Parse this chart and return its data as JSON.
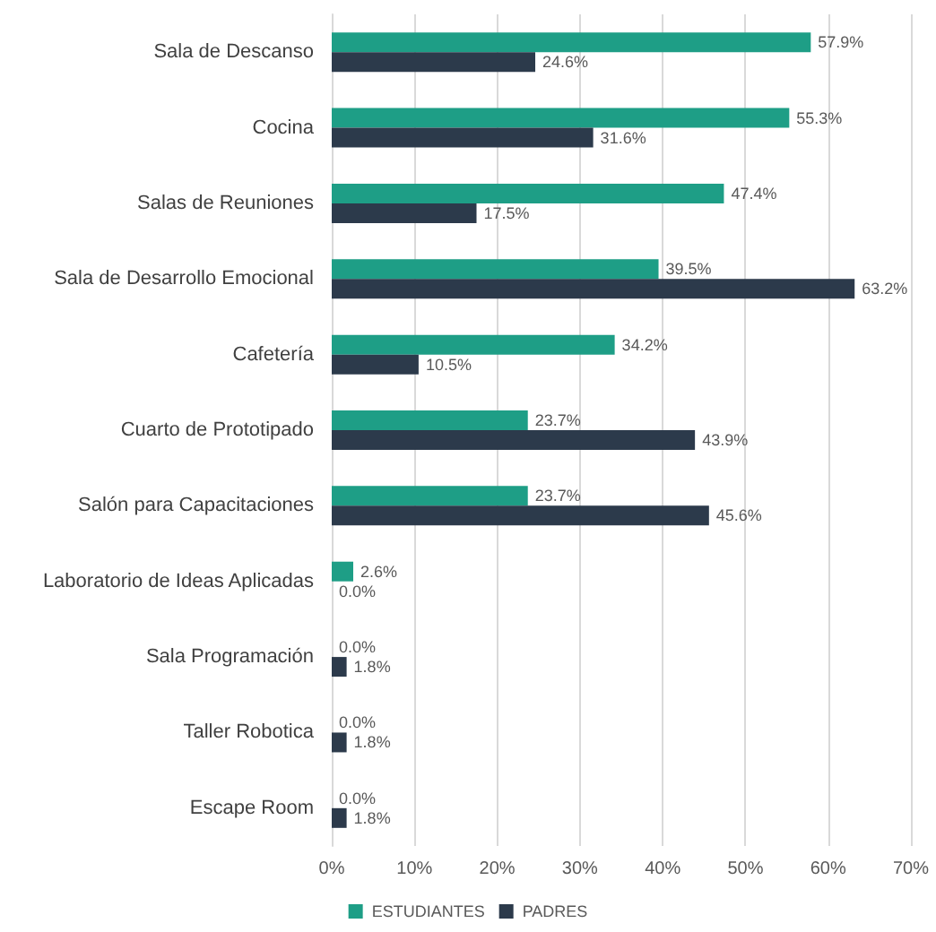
{
  "chart_data": {
    "type": "bar",
    "orientation": "horizontal",
    "categories": [
      "Sala de Descanso",
      "Cocina",
      "Salas de Reuniones",
      "Sala de Desarrollo Emocional",
      "Cafetería",
      "Cuarto de Prototipado",
      "Salón para Capacitaciones",
      "Laboratorio de Ideas Aplicadas",
      "Sala Programación",
      "Taller Robotica",
      "Escape Room"
    ],
    "series": [
      {
        "name": "ESTUDIANTES",
        "color": "#1e9e86",
        "values": [
          57.9,
          55.3,
          47.4,
          39.5,
          34.2,
          23.7,
          23.7,
          2.6,
          0,
          0,
          0
        ],
        "value_labels": [
          "57.9%",
          "55.3%",
          "47.4%",
          "39.5%",
          "34.2%",
          "23.7%",
          "23.7%",
          "2.6%",
          "0.0%",
          "0.0%",
          "0.0%"
        ]
      },
      {
        "name": "PADRES",
        "color": "#2c3a4b",
        "values": [
          24.6,
          31.6,
          17.5,
          63.2,
          10.5,
          43.9,
          45.6,
          0,
          1.8,
          1.8,
          1.8
        ],
        "value_labels": [
          "24.6%",
          "31.6%",
          "17.5%",
          "63.2%",
          "10.5%",
          "43.9%",
          "45.6%",
          "0.0%",
          "1.8%",
          "1.8%",
          "1.8%"
        ]
      }
    ],
    "xlim": [
      0,
      70
    ],
    "xticks": [
      {
        "value": 0,
        "label": "0%"
      },
      {
        "value": 10,
        "label": "10%"
      },
      {
        "value": 20,
        "label": "20%"
      },
      {
        "value": 30,
        "label": "30%"
      },
      {
        "value": 40,
        "label": "40%"
      },
      {
        "value": 50,
        "label": "50%"
      },
      {
        "value": 60,
        "label": "60%"
      },
      {
        "value": 70,
        "label": "70%"
      }
    ],
    "grid": "x",
    "legend": "bottom"
  }
}
